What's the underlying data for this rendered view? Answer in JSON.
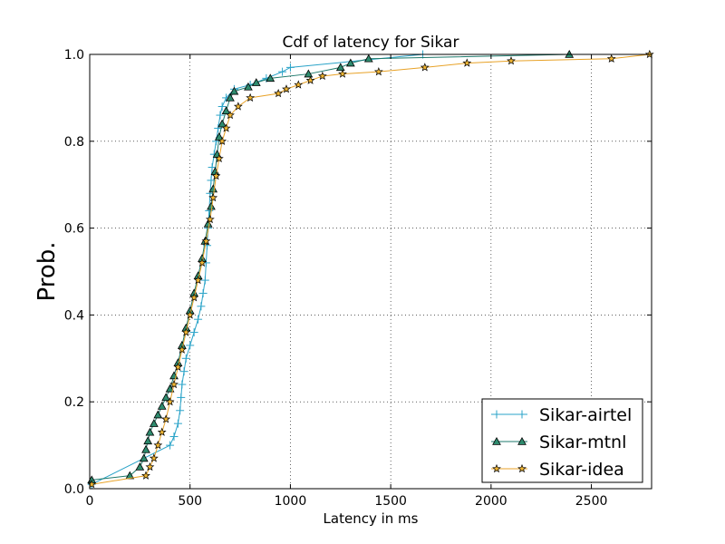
{
  "chart_data": {
    "type": "line",
    "title": "Cdf of latency for Sikar",
    "xlabel": "Latency in ms",
    "ylabel": "Prob.",
    "xlim": [
      0,
      2800
    ],
    "ylim": [
      0.0,
      1.0
    ],
    "xticks": [
      0,
      500,
      1000,
      1500,
      2000,
      2500
    ],
    "yticks": [
      0.0,
      0.2,
      0.4,
      0.6,
      0.8,
      1.0
    ],
    "xtick_labels": [
      "0",
      "500",
      "1000",
      "1500",
      "2000",
      "2500"
    ],
    "ytick_labels": [
      "0.0",
      "0.2",
      "0.4",
      "0.6",
      "0.8",
      "1.0"
    ],
    "grid": true,
    "legend_position": "lower-right",
    "series": [
      {
        "name": "Sikar-airtel",
        "color": "#2aa3c8",
        "marker": "plus",
        "x": [
          10,
          400,
          420,
          440,
          450,
          455,
          460,
          470,
          480,
          500,
          520,
          540,
          555,
          565,
          575,
          580,
          585,
          590,
          595,
          600,
          605,
          610,
          620,
          630,
          640,
          650,
          660,
          680,
          720,
          800,
          880,
          960,
          1000,
          1660
        ],
        "y": [
          0.01,
          0.1,
          0.12,
          0.15,
          0.18,
          0.21,
          0.24,
          0.27,
          0.3,
          0.33,
          0.36,
          0.39,
          0.42,
          0.45,
          0.48,
          0.52,
          0.56,
          0.6,
          0.64,
          0.68,
          0.71,
          0.74,
          0.77,
          0.8,
          0.83,
          0.86,
          0.88,
          0.9,
          0.92,
          0.93,
          0.945,
          0.96,
          0.97,
          1.0
        ]
      },
      {
        "name": "Sikar-mtnl",
        "color": "#1e7a6c",
        "marker": "triangle",
        "x": [
          10,
          200,
          250,
          270,
          280,
          290,
          300,
          320,
          340,
          360,
          380,
          400,
          420,
          440,
          460,
          480,
          500,
          520,
          540,
          560,
          575,
          590,
          605,
          615,
          625,
          635,
          645,
          660,
          680,
          700,
          720,
          790,
          830,
          900,
          1090,
          1250,
          1300,
          1390,
          2390
        ],
        "y": [
          0.02,
          0.03,
          0.05,
          0.07,
          0.09,
          0.11,
          0.13,
          0.15,
          0.17,
          0.19,
          0.21,
          0.23,
          0.26,
          0.29,
          0.33,
          0.37,
          0.41,
          0.45,
          0.49,
          0.53,
          0.57,
          0.61,
          0.65,
          0.69,
          0.73,
          0.77,
          0.81,
          0.84,
          0.87,
          0.9,
          0.915,
          0.925,
          0.935,
          0.945,
          0.955,
          0.97,
          0.98,
          0.99,
          1.0
        ]
      },
      {
        "name": "Sikar-idea",
        "color": "#e8a227",
        "marker": "star",
        "x": [
          10,
          280,
          300,
          320,
          340,
          360,
          380,
          400,
          420,
          440,
          460,
          480,
          500,
          520,
          540,
          560,
          580,
          600,
          615,
          630,
          645,
          660,
          680,
          700,
          740,
          800,
          940,
          980,
          1040,
          1100,
          1160,
          1260,
          1440,
          1670,
          1880,
          2100,
          2600,
          2790
        ],
        "y": [
          0.01,
          0.03,
          0.05,
          0.07,
          0.1,
          0.13,
          0.16,
          0.2,
          0.24,
          0.28,
          0.32,
          0.36,
          0.4,
          0.44,
          0.48,
          0.52,
          0.57,
          0.62,
          0.67,
          0.72,
          0.76,
          0.8,
          0.83,
          0.86,
          0.88,
          0.9,
          0.91,
          0.92,
          0.93,
          0.94,
          0.95,
          0.955,
          0.96,
          0.97,
          0.98,
          0.985,
          0.99,
          1.0
        ]
      }
    ]
  }
}
